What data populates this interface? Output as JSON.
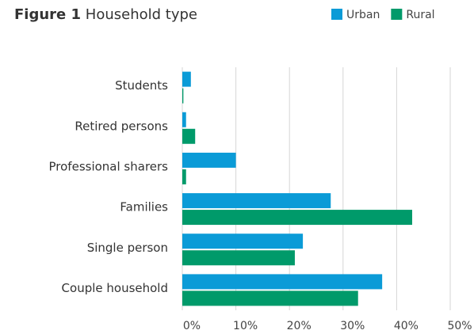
{
  "chart_data": {
    "type": "barh",
    "title_label": "Figure 1",
    "title": "Household type",
    "categories": [
      "Students",
      "Retired persons",
      "Professional sharers",
      "Families",
      "Single person",
      "Couple household"
    ],
    "series": [
      {
        "name": "Urban",
        "color": "#0b9bd7",
        "values": [
          1.6,
          0.7,
          10,
          27.7,
          22.5,
          37.3
        ]
      },
      {
        "name": "Rural",
        "color": "#009a6a",
        "values": [
          0.2,
          2.4,
          0.7,
          42.9,
          21,
          32.8
        ]
      }
    ],
    "xlim": [
      0,
      50
    ],
    "xticks": [
      {
        "value": 0,
        "label": "0%"
      },
      {
        "value": 10,
        "label": "10%"
      },
      {
        "value": 20,
        "label": "20%"
      },
      {
        "value": 30,
        "label": "30%"
      },
      {
        "value": 40,
        "label": "40%"
      },
      {
        "value": 50,
        "label": "50%"
      }
    ],
    "grid": true,
    "legend": "top-right"
  }
}
